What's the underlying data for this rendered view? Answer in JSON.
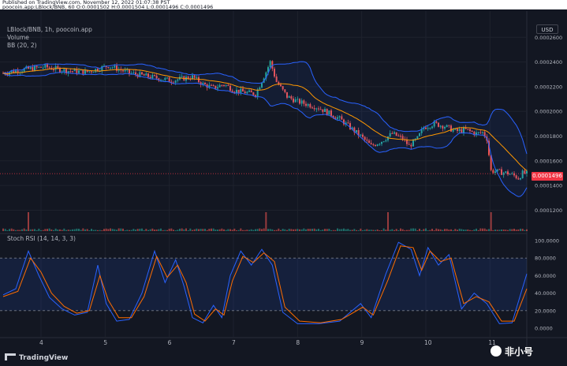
{
  "header": {
    "published": "Published on TradingView.com, November 12, 2022 01:07:38 PST",
    "ohlc": "poocoin.app:LBlock/BNB, 60  O:0.0001502  H:0.0001504  L:0.0001496  C:0.0001496"
  },
  "legend": {
    "symbol": "LBlock/BNB, 1h, poocoin.app",
    "volume": "Volume",
    "bb": "BB (20, 2)"
  },
  "indicator": {
    "label": "Stoch RSI (14, 14, 3, 3)"
  },
  "axis": {
    "currency": "USD"
  },
  "price_tag": "0.0001496",
  "branding": {
    "tv": "TradingView",
    "watermark": "非小号"
  },
  "colors": {
    "bull": "#26a69a",
    "bear": "#ef5350",
    "band": "#2962ff",
    "basis": "#ff9800",
    "k": "#2962ff",
    "d": "#ff6d00"
  },
  "chart_data": [
    {
      "type": "candlestick",
      "x_ticks": [
        "4",
        "5",
        "6",
        "7",
        "8",
        "9",
        "10",
        "11"
      ],
      "ylim": [
        0.000112,
        0.000264
      ],
      "y_ticks": [
        "0.0001200",
        "0.0001400",
        "0.0001600",
        "0.0001800",
        "0.0002000",
        "0.0002200",
        "0.0002400",
        "0.0002600"
      ],
      "last_price": "0.0001496",
      "price_path": [
        [
          0,
          0.000231
        ],
        [
          10,
          0.000234
        ],
        [
          20,
          0.000236
        ],
        [
          30,
          0.000233
        ],
        [
          40,
          0.000232
        ],
        [
          50,
          0.000237
        ],
        [
          60,
          0.000231
        ],
        [
          70,
          0.000228
        ],
        [
          80,
          0.000225
        ],
        [
          90,
          0.000228
        ],
        [
          95,
          0.000222
        ],
        [
          100,
          0.000219
        ],
        [
          105,
          0.000222
        ],
        [
          110,
          0.000217
        ],
        [
          120,
          0.000214
        ],
        [
          125,
          0.000232
        ],
        [
          127,
          0.00024
        ],
        [
          130,
          0.000224
        ],
        [
          135,
          0.000212
        ],
        [
          140,
          0.000208
        ],
        [
          150,
          0.000203
        ],
        [
          160,
          0.000194
        ],
        [
          170,
          0.00018
        ],
        [
          175,
          0.000172
        ],
        [
          180,
          0.000176
        ],
        [
          185,
          0.000182
        ],
        [
          190,
          0.000178
        ],
        [
          193,
          0.000172
        ],
        [
          197,
          0.000178
        ],
        [
          200,
          0.000187
        ],
        [
          205,
          0.00019
        ],
        [
          210,
          0.000188
        ],
        [
          215,
          0.000184
        ],
        [
          220,
          0.000185
        ],
        [
          225,
          0.000182
        ],
        [
          228,
          0.000183
        ],
        [
          230,
          0.000178
        ],
        [
          232,
          0.000152
        ],
        [
          236,
          0.000151
        ],
        [
          240,
          0.00015
        ],
        [
          243,
          0.000148
        ],
        [
          245,
          0.000146
        ],
        [
          247,
          0.00015
        ],
        [
          249,
          0.0001496
        ]
      ],
      "bollinger_bands": {
        "period": 20,
        "stddev": 2
      },
      "volume_spikes": [
        [
          12,
          1.0
        ],
        [
          125,
          1.0
        ],
        [
          183,
          1.0
        ],
        [
          232,
          1.0
        ]
      ]
    },
    {
      "type": "line",
      "title": "Stoch RSI (14, 14, 3, 3)",
      "ylim": [
        0,
        100
      ],
      "y_ticks": [
        "0.0000",
        "20.0000",
        "40.0000",
        "60.0000",
        "80.0000",
        "100.0000"
      ],
      "bands": [
        20,
        80
      ],
      "series": [
        {
          "values": [
            [
              0,
              38
            ],
            [
              6,
              45
            ],
            [
              12,
              88
            ],
            [
              17,
              60
            ],
            [
              22,
              35
            ],
            [
              28,
              22
            ],
            [
              34,
              15
            ],
            [
              40,
              18
            ],
            [
              45,
              72
            ],
            [
              49,
              28
            ],
            [
              54,
              8
            ],
            [
              60,
              10
            ],
            [
              66,
              40
            ],
            [
              72,
              88
            ],
            [
              77,
              52
            ],
            [
              82,
              78
            ],
            [
              86,
              48
            ],
            [
              90,
              12
            ],
            [
              95,
              6
            ],
            [
              100,
              26
            ],
            [
              104,
              12
            ],
            [
              108,
              60
            ],
            [
              113,
              88
            ],
            [
              118,
              72
            ],
            [
              123,
              90
            ],
            [
              128,
              72
            ],
            [
              133,
              18
            ],
            [
              140,
              5
            ],
            [
              150,
              5
            ],
            [
              160,
              8
            ],
            [
              170,
              28
            ],
            [
              175,
              12
            ],
            [
              182,
              62
            ],
            [
              188,
              98
            ],
            [
              194,
              90
            ],
            [
              198,
              60
            ],
            [
              202,
              92
            ],
            [
              207,
              72
            ],
            [
              212,
              84
            ],
            [
              218,
              22
            ],
            [
              224,
              40
            ],
            [
              230,
              28
            ],
            [
              236,
              5
            ],
            [
              242,
              6
            ],
            [
              249,
              62
            ]
          ]
        },
        {
          "values": [
            [
              0,
              36
            ],
            [
              7,
              42
            ],
            [
              13,
              80
            ],
            [
              18,
              64
            ],
            [
              23,
              40
            ],
            [
              29,
              25
            ],
            [
              35,
              17
            ],
            [
              41,
              20
            ],
            [
              46,
              60
            ],
            [
              50,
              32
            ],
            [
              55,
              12
            ],
            [
              61,
              12
            ],
            [
              67,
              36
            ],
            [
              73,
              82
            ],
            [
              78,
              58
            ],
            [
              83,
              72
            ],
            [
              87,
              52
            ],
            [
              91,
              16
            ],
            [
              96,
              8
            ],
            [
              101,
              22
            ],
            [
              105,
              15
            ],
            [
              109,
              54
            ],
            [
              114,
              82
            ],
            [
              119,
              75
            ],
            [
              124,
              86
            ],
            [
              129,
              76
            ],
            [
              134,
              24
            ],
            [
              141,
              8
            ],
            [
              151,
              6
            ],
            [
              161,
              10
            ],
            [
              171,
              24
            ],
            [
              176,
              15
            ],
            [
              183,
              55
            ],
            [
              189,
              94
            ],
            [
              195,
              92
            ],
            [
              199,
              66
            ],
            [
              203,
              88
            ],
            [
              208,
              76
            ],
            [
              213,
              80
            ],
            [
              219,
              28
            ],
            [
              225,
              36
            ],
            [
              231,
              30
            ],
            [
              237,
              8
            ],
            [
              243,
              8
            ],
            [
              249,
              45
            ]
          ]
        }
      ]
    }
  ]
}
